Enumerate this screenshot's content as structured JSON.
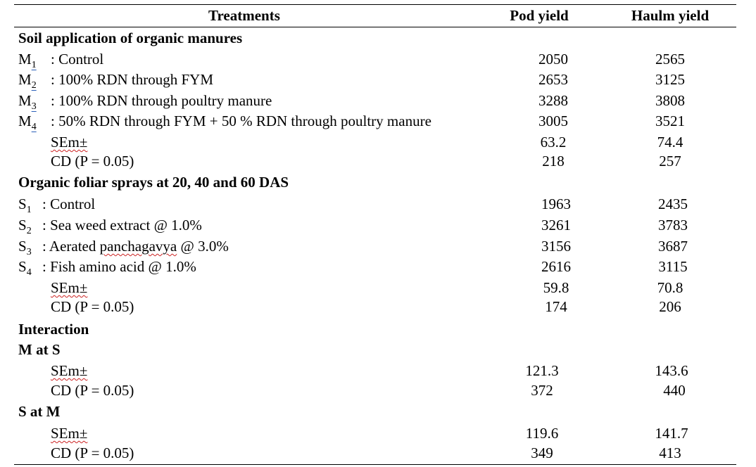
{
  "headers": {
    "treatments": "Treatments",
    "pod": "Pod yield",
    "haulm": "Haulm yield"
  },
  "soil": {
    "title": "Soil application of organic manures",
    "rows": [
      {
        "code": "M",
        "sub": "1",
        "label": ": Control",
        "pod": "2050",
        "haulm": "2565"
      },
      {
        "code": "M",
        "sub": "2",
        "label": ": 100% RDN through FYM",
        "pod": "2653",
        "haulm": "3125"
      },
      {
        "code": "M",
        "sub": "3",
        "label": ": 100% RDN through poultry manure",
        "pod": "3288",
        "haulm": "3808"
      },
      {
        "code": "M",
        "sub": "4",
        "label": ": 50% RDN through FYM + 50 % RDN through poultry manure",
        "pod": "3005",
        "haulm": "3521"
      }
    ],
    "sem": {
      "label": "SEm±",
      "pod": "63.2",
      "haulm": "74.4"
    },
    "cd": {
      "label": "CD (P = 0.05)",
      "pod": "218",
      "haulm": "257"
    }
  },
  "foliar": {
    "title": "Organic foliar sprays at 20, 40 and 60 DAS",
    "rows": [
      {
        "code": "S",
        "sub": "1",
        "label": ": Control",
        "pod": "1963",
        "haulm": "2435"
      },
      {
        "code": "S",
        "sub": "2",
        "label": ": Sea weed extract @ 1.0%",
        "pod": "3261",
        "haulm": "3783"
      },
      {
        "code": "S",
        "sub": "3",
        "label_pre": ": Aerated ",
        "label_squig": "panchagavya",
        "label_post": " @ 3.0%",
        "pod": "3156",
        "haulm": "3687"
      },
      {
        "code": "S",
        "sub": "4",
        "label": ": Fish amino acid @ 1.0%",
        "pod": "2616",
        "haulm": "3115"
      }
    ],
    "sem": {
      "label": "SEm±",
      "pod": "59.8",
      "haulm": "70.8"
    },
    "cd": {
      "label": "CD (P = 0.05)",
      "pod": "174",
      "haulm": "206"
    }
  },
  "interaction": {
    "title": "Interaction",
    "m_at_s": {
      "title": "M at S",
      "sem": {
        "label": "SEm±",
        "pod": "121.3",
        "haulm": "143.6"
      },
      "cd": {
        "label": "CD (P = 0.05)",
        "pod": "372",
        "haulm": "440"
      }
    },
    "s_at_m": {
      "title": "S at M",
      "sem": {
        "label": "SEm±",
        "pod": "119.6",
        "haulm": "141.7"
      },
      "cd": {
        "label": "CD (P = 0.05)",
        "pod": "349",
        "haulm": "413"
      }
    }
  }
}
